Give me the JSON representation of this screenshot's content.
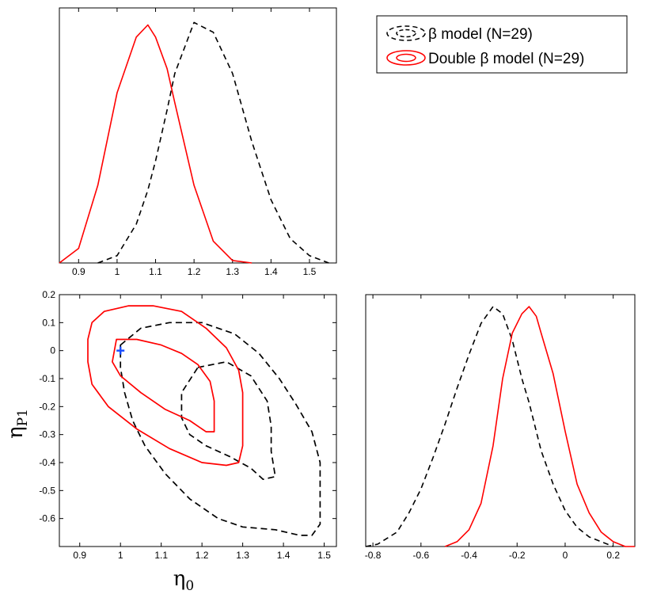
{
  "chart_data": [
    {
      "type": "line",
      "panel": "eta0-marginal",
      "xlim": [
        0.85,
        1.57
      ],
      "x_ticks": [
        "0.9",
        "1",
        "1.1",
        "1.2",
        "1.3",
        "1.4",
        "1.5"
      ],
      "ylim": [
        0,
        1.05
      ],
      "y_ticks_labeled": false,
      "x": [
        0.85,
        0.9,
        0.95,
        1.0,
        1.05,
        1.08,
        1.1,
        1.13,
        1.15,
        1.2,
        1.25,
        1.3,
        1.35,
        1.4,
        1.45,
        1.5,
        1.55
      ],
      "series": [
        {
          "name": "β model (N=29)",
          "color": "#000000",
          "dash": true,
          "values": [
            null,
            null,
            0.0,
            0.03,
            0.16,
            0.3,
            0.42,
            0.63,
            0.78,
            0.99,
            0.95,
            0.78,
            0.5,
            0.26,
            0.1,
            0.03,
            0.0
          ]
        },
        {
          "name": "Double β model (N=29)",
          "color": "#ff0000",
          "dash": false,
          "values": [
            0.0,
            0.06,
            0.32,
            0.7,
            0.93,
            0.98,
            0.93,
            0.8,
            0.66,
            0.32,
            0.09,
            0.01,
            0.0,
            null,
            null,
            null,
            null
          ]
        }
      ]
    },
    {
      "type": "contour",
      "panel": "joint",
      "xlabel": "η",
      "xlabel_sub": "0",
      "ylabel": "η",
      "ylabel_sub": "P1",
      "xlim": [
        0.85,
        1.53
      ],
      "ylim": [
        -0.7,
        0.2
      ],
      "x_ticks": [
        "0.9",
        "1",
        "1.1",
        "1.2",
        "1.3",
        "1.4",
        "1.5"
      ],
      "y_ticks": [
        "0.2",
        "0.1",
        "0",
        "-0.1",
        "-0.2",
        "-0.3",
        "-0.4",
        "-0.5",
        "-0.6"
      ],
      "contours": [
        {
          "series": "β model (N=29)",
          "level": "inner",
          "color": "#000000",
          "dash": true,
          "points": [
            [
              1.19,
              -0.06
            ],
            [
              1.26,
              -0.04
            ],
            [
              1.32,
              -0.09
            ],
            [
              1.36,
              -0.18
            ],
            [
              1.37,
              -0.27
            ],
            [
              1.37,
              -0.36
            ],
            [
              1.38,
              -0.45
            ],
            [
              1.35,
              -0.46
            ],
            [
              1.32,
              -0.42
            ],
            [
              1.27,
              -0.38
            ],
            [
              1.21,
              -0.34
            ],
            [
              1.17,
              -0.3
            ],
            [
              1.15,
              -0.24
            ],
            [
              1.15,
              -0.15
            ]
          ]
        },
        {
          "series": "β model (N=29)",
          "level": "outer",
          "color": "#000000",
          "dash": true,
          "points": [
            [
              1.0,
              0.02
            ],
            [
              1.05,
              0.08
            ],
            [
              1.12,
              0.1
            ],
            [
              1.2,
              0.1
            ],
            [
              1.28,
              0.06
            ],
            [
              1.34,
              -0.01
            ],
            [
              1.39,
              -0.1
            ],
            [
              1.43,
              -0.19
            ],
            [
              1.47,
              -0.29
            ],
            [
              1.49,
              -0.4
            ],
            [
              1.49,
              -0.52
            ],
            [
              1.49,
              -0.62
            ],
            [
              1.47,
              -0.66
            ],
            [
              1.44,
              -0.66
            ],
            [
              1.38,
              -0.64
            ],
            [
              1.3,
              -0.63
            ],
            [
              1.24,
              -0.6
            ],
            [
              1.17,
              -0.53
            ],
            [
              1.11,
              -0.44
            ],
            [
              1.06,
              -0.34
            ],
            [
              1.03,
              -0.25
            ],
            [
              1.01,
              -0.15
            ],
            [
              1.0,
              -0.06
            ]
          ]
        },
        {
          "series": "Double β model (N=29)",
          "level": "inner",
          "color": "#ff0000",
          "dash": false,
          "points": [
            [
              0.99,
              0.04
            ],
            [
              1.04,
              0.04
            ],
            [
              1.1,
              0.02
            ],
            [
              1.15,
              -0.01
            ],
            [
              1.19,
              -0.05
            ],
            [
              1.22,
              -0.11
            ],
            [
              1.23,
              -0.18
            ],
            [
              1.23,
              -0.24
            ],
            [
              1.23,
              -0.29
            ],
            [
              1.21,
              -0.29
            ],
            [
              1.17,
              -0.25
            ],
            [
              1.11,
              -0.21
            ],
            [
              1.05,
              -0.15
            ],
            [
              1.0,
              -0.09
            ],
            [
              0.98,
              -0.04
            ]
          ]
        },
        {
          "series": "Double β model (N=29)",
          "level": "outer",
          "color": "#ff0000",
          "dash": false,
          "points": [
            [
              0.93,
              0.1
            ],
            [
              0.96,
              0.14
            ],
            [
              1.02,
              0.16
            ],
            [
              1.08,
              0.16
            ],
            [
              1.15,
              0.14
            ],
            [
              1.21,
              0.08
            ],
            [
              1.26,
              0.01
            ],
            [
              1.29,
              -0.07
            ],
            [
              1.3,
              -0.15
            ],
            [
              1.3,
              -0.25
            ],
            [
              1.3,
              -0.34
            ],
            [
              1.29,
              -0.4
            ],
            [
              1.26,
              -0.41
            ],
            [
              1.2,
              -0.4
            ],
            [
              1.12,
              -0.35
            ],
            [
              1.04,
              -0.28
            ],
            [
              0.97,
              -0.2
            ],
            [
              0.93,
              -0.12
            ],
            [
              0.92,
              -0.04
            ],
            [
              0.92,
              0.04
            ]
          ]
        }
      ],
      "marker": {
        "shape": "plus",
        "color": "#1a4dff",
        "x": 1.0,
        "y": 0.0
      }
    },
    {
      "type": "line",
      "panel": "etaP1-marginal",
      "xlim": [
        -0.83,
        0.29
      ],
      "x_ticks": [
        "-0.8",
        "-0.6",
        "-0.4",
        "-0.2",
        "0",
        "0.2"
      ],
      "ylim": [
        0,
        1.05
      ],
      "y_ticks_labeled": false,
      "x": [
        -0.83,
        -0.78,
        -0.7,
        -0.65,
        -0.6,
        -0.55,
        -0.5,
        -0.45,
        -0.4,
        -0.35,
        -0.3,
        -0.26,
        -0.22,
        -0.18,
        -0.15,
        -0.12,
        -0.1,
        -0.05,
        0.0,
        0.05,
        0.1,
        0.15,
        0.2,
        0.25,
        0.29
      ],
      "series": [
        {
          "name": "β model (N=29)",
          "color": "#000000",
          "dash": true,
          "values": [
            0.0,
            0.01,
            0.06,
            0.14,
            0.24,
            0.37,
            0.51,
            0.66,
            0.8,
            0.93,
            1.0,
            0.97,
            0.86,
            0.7,
            0.6,
            0.48,
            0.4,
            0.26,
            0.15,
            0.08,
            0.04,
            0.02,
            0.0,
            null,
            null
          ]
        },
        {
          "name": "Double β model (N=29)",
          "color": "#ff0000",
          "dash": false,
          "values": [
            null,
            null,
            null,
            null,
            null,
            null,
            0.0,
            0.02,
            0.07,
            0.18,
            0.42,
            0.7,
            0.89,
            0.97,
            1.0,
            0.96,
            0.89,
            0.72,
            0.48,
            0.26,
            0.14,
            0.06,
            0.02,
            0.0,
            0.0
          ]
        }
      ]
    }
  ],
  "legend": {
    "placement": "top-right",
    "entries": [
      {
        "symbol": "β",
        "text": " model (N=29)",
        "color": "#000000",
        "dash": true
      },
      {
        "symbol": "Double β",
        "text": " model (N=29)",
        "color": "#ff0000",
        "dash": false
      }
    ]
  }
}
